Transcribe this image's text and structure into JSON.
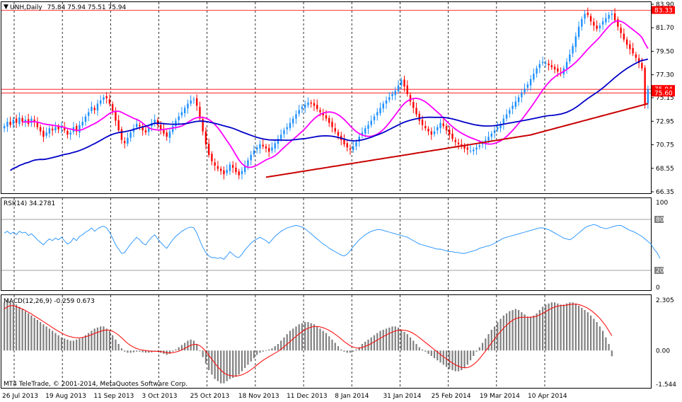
{
  "header": {
    "symbol_label": "UNH,Daily",
    "ohlc_label": "75.84 75.94 75.51 75.94"
  },
  "colors": {
    "up": "#1e90ff",
    "down": "#ff0000",
    "ma_fast": "#ff00ff",
    "ma_mid": "#0000c8",
    "ma_slow": "#c80000",
    "rsi_line": "#1e90ff",
    "macd_hist": "#808080",
    "macd_signal": "#ff0000",
    "level_line": "#ff0000",
    "grid": "#000000"
  },
  "chart_data": [
    {
      "type": "candlestick",
      "panel": "price",
      "ylim": [
        66.35,
        83.9
      ],
      "y_ticks": [
        "83.90",
        "81.70",
        "79.50",
        "77.30",
        "75.15",
        "72.95",
        "70.75",
        "68.55",
        "66.35"
      ],
      "price_tags": [
        {
          "label": "83.33",
          "value": 83.33
        },
        {
          "label": "75.94",
          "value": 75.94
        },
        {
          "label": "75.60",
          "value": 75.6
        }
      ],
      "x_labels": [
        "26 Jul 2013",
        "19 Aug 2013",
        "11 Sep 2013",
        "3 Oct 2013",
        "25 Oct 2013",
        "18 Nov 2013",
        "11 Dec 2013",
        "8 Jan 2014",
        "31 Jan 2014",
        "25 Feb 2014",
        "19 Mar 2014",
        "10 Apr 2014"
      ],
      "close": [
        72.5,
        72.9,
        72.6,
        73.1,
        72.8,
        73.3,
        72.9,
        73.1,
        72.7,
        73.2,
        72.9,
        72.4,
        72.0,
        71.5,
        71.9,
        72.3,
        72.1,
        72.4,
        72.2,
        72.5,
        72.1,
        71.7,
        71.9,
        72.4,
        72.0,
        72.6,
        72.9,
        73.4,
        73.8,
        74.3,
        74.0,
        74.6,
        74.9,
        75.2,
        75.1,
        74.6,
        73.9,
        73.0,
        72.1,
        71.2,
        70.9,
        71.4,
        71.9,
        72.3,
        72.7,
        72.5,
        72.1,
        71.9,
        72.4,
        72.8,
        73.1,
        72.6,
        72.2,
        71.8,
        71.5,
        72.0,
        72.5,
        73.0,
        73.4,
        73.8,
        74.2,
        74.6,
        74.9,
        75.0,
        74.4,
        73.2,
        72.0,
        70.8,
        69.8,
        69.2,
        68.8,
        68.5,
        68.3,
        68.0,
        68.4,
        68.9,
        68.6,
        68.2,
        67.9,
        68.3,
        68.8,
        69.3,
        69.8,
        70.2,
        70.5,
        70.8,
        70.6,
        70.4,
        70.1,
        70.5,
        70.9,
        71.3,
        71.7,
        72.1,
        72.4,
        72.8,
        73.2,
        73.6,
        74.0,
        74.3,
        74.5,
        74.7,
        74.6,
        74.4,
        74.1,
        73.8,
        73.5,
        73.2,
        72.8,
        72.4,
        72.0,
        71.6,
        71.2,
        70.8,
        70.5,
        70.3,
        70.6,
        71.0,
        71.5,
        71.9,
        72.3,
        72.6,
        73.0,
        73.4,
        73.8,
        74.2,
        74.6,
        74.9,
        75.2,
        75.5,
        75.8,
        76.3,
        76.8,
        76.2,
        75.5,
        74.8,
        74.2,
        73.6,
        73.0,
        72.6,
        72.3,
        72.0,
        71.7,
        72.0,
        72.4,
        72.8,
        72.5,
        72.1,
        71.7,
        71.3,
        71.0,
        70.8,
        70.6,
        70.4,
        70.3,
        70.2,
        70.3,
        70.5,
        70.7,
        70.9,
        71.2,
        71.5,
        71.8,
        72.1,
        72.4,
        72.7,
        73.2,
        73.6,
        74.0,
        74.4,
        74.8,
        75.2,
        75.6,
        76.0,
        76.4,
        76.9,
        77.4,
        77.9,
        78.3,
        78.5,
        78.4,
        78.2,
        78.0,
        77.8,
        77.6,
        77.4,
        77.9,
        78.5,
        79.2,
        80.0,
        80.9,
        81.8,
        82.5,
        83.0,
        82.9,
        82.3,
        81.9,
        81.6,
        81.9,
        82.3,
        82.6,
        82.9,
        83.0,
        82.4,
        81.8,
        81.2,
        80.6,
        80.1,
        79.7,
        79.3,
        78.9,
        78.4,
        77.9,
        74.5,
        75.94
      ]
    },
    {
      "type": "line",
      "panel": "rsi",
      "label": "RSI(14) 34.2781",
      "ylim": [
        0,
        100
      ],
      "y_ticks": [
        "100",
        "80",
        "20",
        "0"
      ],
      "levels": [
        80,
        20
      ],
      "values": [
        64,
        66,
        63,
        65,
        62,
        66,
        64,
        65,
        61,
        63,
        60,
        56,
        53,
        50,
        54,
        57,
        55,
        58,
        56,
        59,
        55,
        51,
        53,
        58,
        55,
        60,
        62,
        65,
        67,
        70,
        66,
        69,
        71,
        72,
        70,
        65,
        58,
        50,
        45,
        40,
        41,
        46,
        51,
        55,
        59,
        56,
        52,
        50,
        55,
        59,
        62,
        57,
        53,
        49,
        46,
        51,
        56,
        60,
        63,
        66,
        68,
        70,
        71,
        70,
        64,
        55,
        47,
        41,
        37,
        35,
        35,
        34,
        35,
        33,
        37,
        42,
        39,
        36,
        35,
        39,
        44,
        48,
        52,
        55,
        57,
        59,
        57,
        55,
        52,
        56,
        60,
        63,
        66,
        68,
        70,
        71,
        72,
        73,
        72,
        71,
        69,
        66,
        63,
        60,
        57,
        54,
        51,
        49,
        46,
        44,
        42,
        40,
        38,
        37,
        39,
        43,
        48,
        52,
        56,
        59,
        62,
        64,
        66,
        67,
        68,
        68,
        67,
        66,
        65,
        64,
        63,
        62,
        61,
        60,
        59,
        57,
        55,
        53,
        51,
        50,
        49,
        48,
        47,
        46,
        45,
        45,
        44,
        43,
        42,
        42,
        41,
        41,
        40,
        40,
        41,
        42,
        43,
        44,
        46,
        47,
        48,
        49,
        50,
        52,
        54,
        56,
        58,
        59,
        60,
        61,
        62,
        63,
        64,
        65,
        66,
        67,
        68,
        69,
        70,
        70,
        69,
        68,
        66,
        64,
        62,
        60,
        58,
        57,
        56,
        58,
        61,
        64,
        67,
        70,
        72,
        73,
        74,
        73,
        71,
        70,
        69,
        70,
        71,
        72,
        73,
        73,
        71,
        69,
        67,
        66,
        64,
        62,
        60,
        57,
        54,
        51,
        45,
        41,
        34.28
      ]
    },
    {
      "type": "bar+line",
      "panel": "macd",
      "label": "MACD(12,26,9) -0.259 0.673",
      "ylim": [
        -1.544,
        2.305
      ],
      "y_ticks": [
        "2.305",
        "0.00",
        "-1.544"
      ],
      "histogram": [
        2.2,
        2.3,
        2.25,
        2.2,
        2.1,
        2.0,
        1.9,
        1.8,
        1.7,
        1.6,
        1.5,
        1.4,
        1.3,
        1.2,
        1.1,
        1.0,
        0.9,
        0.8,
        0.7,
        0.6,
        0.55,
        0.5,
        0.45,
        0.45,
        0.5,
        0.55,
        0.6,
        0.7,
        0.8,
        0.9,
        1.0,
        1.05,
        1.1,
        1.1,
        1.0,
        0.9,
        0.7,
        0.5,
        0.3,
        0.1,
        -0.05,
        -0.1,
        -0.1,
        -0.08,
        -0.05,
        -0.05,
        -0.08,
        -0.1,
        -0.1,
        -0.08,
        -0.05,
        -0.06,
        -0.1,
        -0.15,
        -0.2,
        -0.15,
        -0.05,
        0.05,
        0.15,
        0.25,
        0.35,
        0.45,
        0.5,
        0.45,
        0.3,
        0.0,
        -0.3,
        -0.6,
        -0.9,
        -1.1,
        -1.3,
        -1.4,
        -1.5,
        -1.5,
        -1.4,
        -1.3,
        -1.25,
        -1.2,
        -1.1,
        -0.95,
        -0.8,
        -0.65,
        -0.5,
        -0.35,
        -0.2,
        -0.1,
        -0.05,
        0.0,
        0.05,
        0.1,
        0.2,
        0.3,
        0.45,
        0.6,
        0.75,
        0.9,
        1.0,
        1.1,
        1.2,
        1.25,
        1.3,
        1.3,
        1.25,
        1.2,
        1.1,
        1.0,
        0.9,
        0.8,
        0.65,
        0.5,
        0.35,
        0.2,
        0.05,
        -0.05,
        -0.1,
        -0.1,
        -0.05,
        0.05,
        0.15,
        0.3,
        0.4,
        0.5,
        0.6,
        0.7,
        0.8,
        0.9,
        0.95,
        1.0,
        1.05,
        1.1,
        1.1,
        1.05,
        0.95,
        0.85,
        0.75,
        0.6,
        0.45,
        0.3,
        0.15,
        0.05,
        -0.05,
        -0.15,
        -0.25,
        -0.35,
        -0.45,
        -0.55,
        -0.65,
        -0.75,
        -0.85,
        -0.9,
        -0.95,
        -0.95,
        -0.9,
        -0.8,
        -0.65,
        -0.45,
        -0.25,
        -0.05,
        0.15,
        0.35,
        0.55,
        0.75,
        0.95,
        1.1,
        1.3,
        1.45,
        1.6,
        1.7,
        1.8,
        1.85,
        1.9,
        1.85,
        1.75,
        1.65,
        1.55,
        1.55,
        1.6,
        1.7,
        1.85,
        2.0,
        2.1,
        2.15,
        2.2,
        2.2,
        2.15,
        2.1,
        2.1,
        2.15,
        2.2,
        2.2,
        2.15,
        2.05,
        1.95,
        1.85,
        1.75,
        1.6,
        1.45,
        1.3,
        1.1,
        0.9,
        0.6,
        0.3,
        -0.26
      ],
      "signal": [
        1.9,
        2.0,
        2.05,
        2.05,
        2.0,
        1.95,
        1.9,
        1.83,
        1.75,
        1.67,
        1.58,
        1.5,
        1.41,
        1.32,
        1.23,
        1.14,
        1.05,
        0.96,
        0.88,
        0.8,
        0.73,
        0.67,
        0.63,
        0.6,
        0.58,
        0.58,
        0.6,
        0.63,
        0.67,
        0.72,
        0.78,
        0.83,
        0.88,
        0.92,
        0.94,
        0.93,
        0.88,
        0.8,
        0.7,
        0.58,
        0.45,
        0.33,
        0.23,
        0.15,
        0.09,
        0.05,
        0.02,
        0.0,
        -0.02,
        -0.03,
        -0.03,
        -0.04,
        -0.05,
        -0.07,
        -0.1,
        -0.11,
        -0.1,
        -0.07,
        -0.03,
        0.03,
        0.1,
        0.17,
        0.24,
        0.28,
        0.28,
        0.22,
        0.11,
        -0.04,
        -0.22,
        -0.4,
        -0.58,
        -0.75,
        -0.9,
        -1.02,
        -1.1,
        -1.14,
        -1.16,
        -1.17,
        -1.15,
        -1.11,
        -1.05,
        -0.97,
        -0.88,
        -0.77,
        -0.66,
        -0.55,
        -0.45,
        -0.36,
        -0.28,
        -0.2,
        -0.12,
        -0.04,
        0.06,
        0.17,
        0.29,
        0.41,
        0.53,
        0.65,
        0.76,
        0.86,
        0.95,
        1.02,
        1.07,
        1.1,
        1.1,
        1.08,
        1.04,
        0.99,
        0.92,
        0.84,
        0.74,
        0.64,
        0.53,
        0.41,
        0.31,
        0.22,
        0.16,
        0.12,
        0.11,
        0.14,
        0.19,
        0.25,
        0.32,
        0.4,
        0.48,
        0.56,
        0.64,
        0.71,
        0.78,
        0.84,
        0.89,
        0.93,
        0.94,
        0.93,
        0.9,
        0.85,
        0.78,
        0.69,
        0.59,
        0.48,
        0.37,
        0.26,
        0.15,
        0.04,
        -0.07,
        -0.18,
        -0.28,
        -0.38,
        -0.48,
        -0.57,
        -0.65,
        -0.72,
        -0.77,
        -0.79,
        -0.78,
        -0.73,
        -0.64,
        -0.52,
        -0.37,
        -0.2,
        -0.02,
        0.16,
        0.35,
        0.53,
        0.71,
        0.87,
        1.02,
        1.16,
        1.28,
        1.38,
        1.46,
        1.5,
        1.52,
        1.52,
        1.52,
        1.52,
        1.54,
        1.57,
        1.63,
        1.7,
        1.78,
        1.86,
        1.93,
        1.99,
        2.03,
        2.05,
        2.06,
        2.08,
        2.1,
        2.12,
        2.12,
        2.1,
        2.06,
        2.0,
        1.93,
        1.84,
        1.73,
        1.61,
        1.47,
        1.3,
        1.12,
        0.9,
        0.67
      ]
    }
  ],
  "footer": {
    "copyright": "MT4 TeleTrade, © 2001-2014, MetaQuotes Software Corp."
  }
}
